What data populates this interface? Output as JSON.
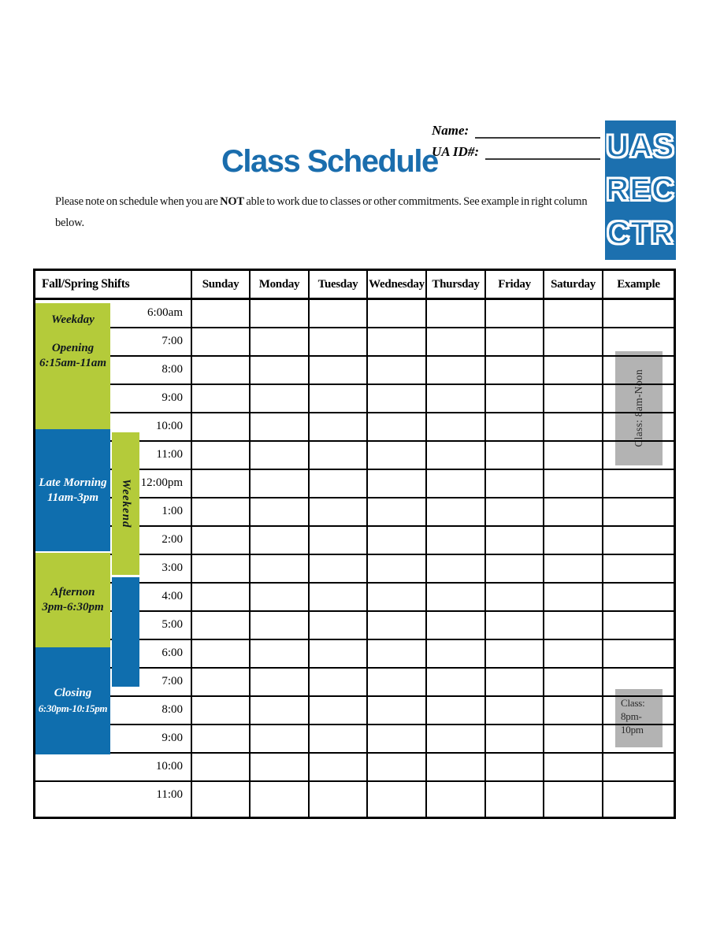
{
  "header": {
    "title": "Class Schedule",
    "name_label": "Name:",
    "ua_id_label": "UA ID#:",
    "logo_lines": [
      "UAS",
      "REC",
      "CTR"
    ]
  },
  "intro": {
    "prefix": "Please note on schedule when you are ",
    "bold": "NOT",
    "suffix_line1": " able to work due to classes or other commitments. See example in right column",
    "line2": "below."
  },
  "schedule": {
    "corner_header": "Fall/Spring Shifts",
    "day_headers": [
      "Sunday",
      "Monday",
      "Tuesday",
      "Wednesday",
      "Thursday",
      "Friday",
      "Saturday",
      "Example"
    ],
    "times": [
      "6:00am",
      "7:00",
      "8:00",
      "9:00",
      "10:00",
      "11:00",
      "12:00pm",
      "1:00",
      "2:00",
      "3:00",
      "4:00",
      "5:00",
      "6:00",
      "7:00",
      "8:00",
      "9:00",
      "10:00",
      "11:00"
    ],
    "shifts": {
      "weekday_opening": {
        "group": "Weekday",
        "name": "Opening",
        "time": "6:15am-11am"
      },
      "late_morning": {
        "name": "Late Morning",
        "time": "11am-3pm"
      },
      "afternoon": {
        "name": "Afternon",
        "time": "3pm-6:30pm"
      },
      "closing": {
        "name": "Closing",
        "time": "6:30pm-10:15pm"
      },
      "weekend": {
        "name": "Weekend"
      }
    },
    "examples": {
      "morning_class": {
        "text": "Class: 8am-Noon"
      },
      "evening_class": {
        "line1": "Class:",
        "line2": "8pm-10pm"
      }
    }
  },
  "colors": {
    "accent_blue": "#0f6eae",
    "logo_blue": "#1c70af",
    "title_blue": "#1a6dad",
    "shift_green": "#b4cb3a",
    "example_gray": "#b3b3b3"
  }
}
